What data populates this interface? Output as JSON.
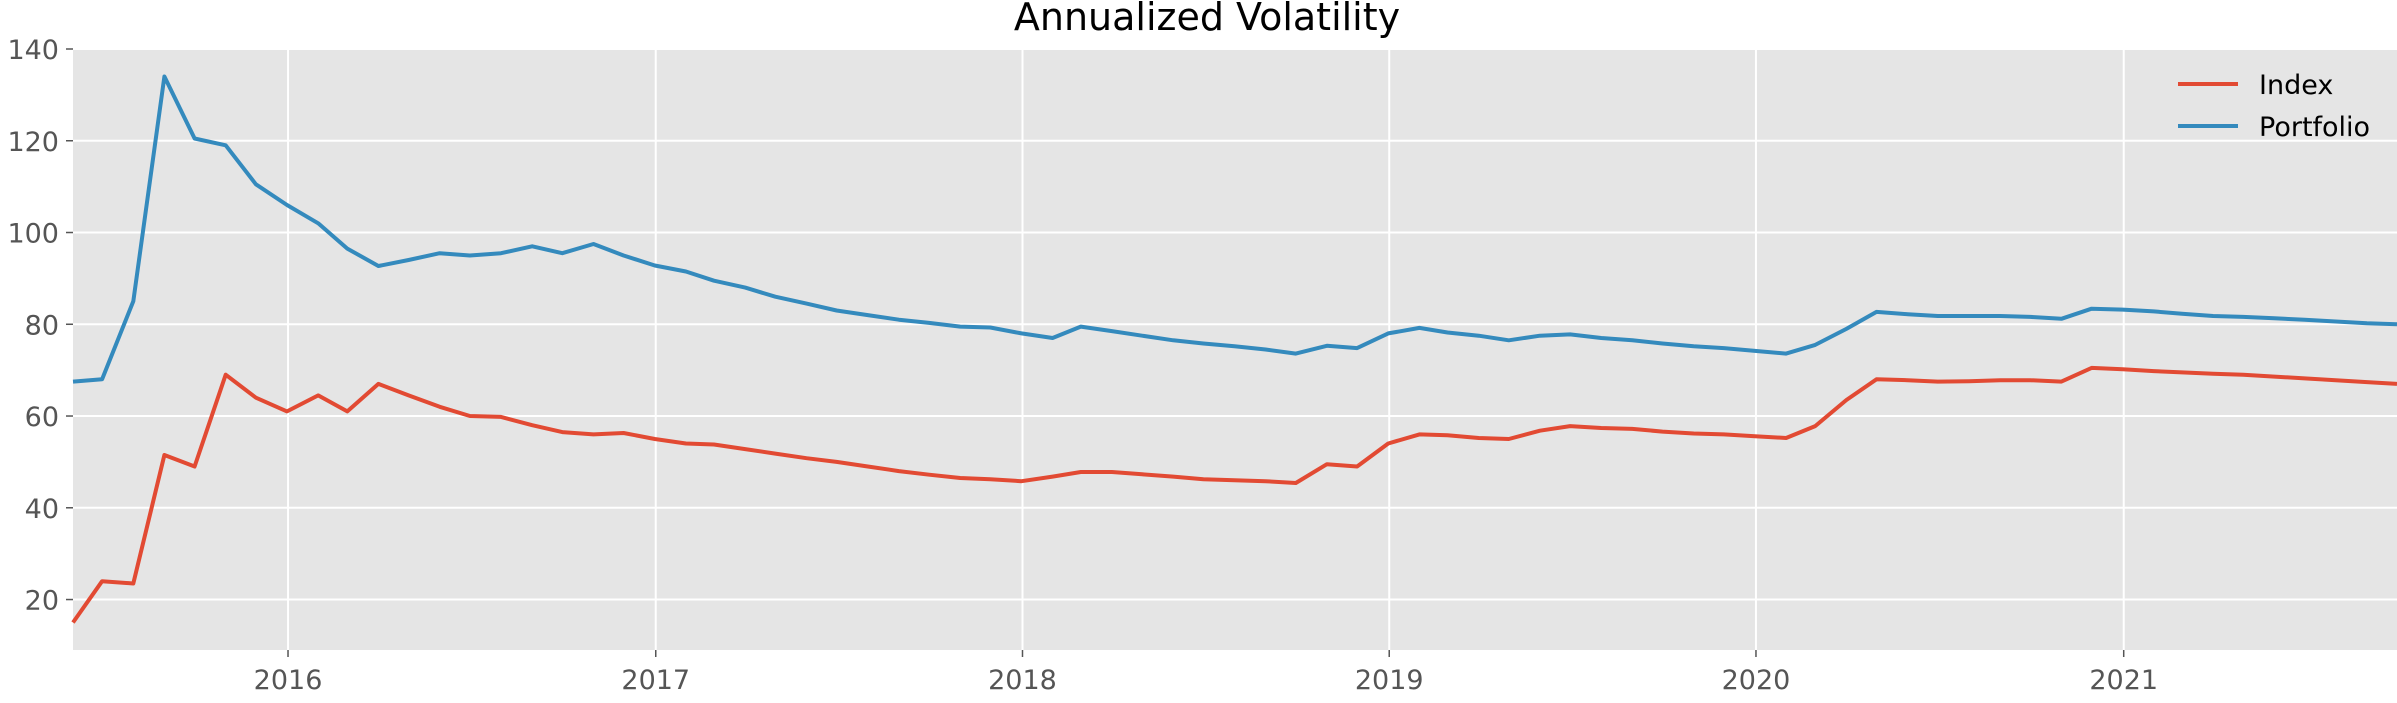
{
  "chart_data": {
    "type": "line",
    "title": "Annualized Volatility",
    "xlabel": "",
    "ylabel": "",
    "x_ticks": [
      "2016",
      "2017",
      "2018",
      "2019",
      "2020",
      "2021"
    ],
    "y_ticks": [
      20,
      40,
      60,
      80,
      100,
      120,
      140
    ],
    "x_range": [
      "2015-06-01",
      "2021-09-30"
    ],
    "ylim": [
      9,
      140
    ],
    "grid": true,
    "legend_position": "top-right",
    "x": [
      "2015-06-01",
      "2015-06-30",
      "2015-07-31",
      "2015-08-31",
      "2015-09-30",
      "2015-10-31",
      "2015-11-30",
      "2015-12-31",
      "2016-01-31",
      "2016-02-29",
      "2016-03-31",
      "2016-04-30",
      "2016-05-31",
      "2016-06-30",
      "2016-07-31",
      "2016-08-31",
      "2016-09-30",
      "2016-10-31",
      "2016-11-30",
      "2016-12-31",
      "2017-01-31",
      "2017-02-28",
      "2017-03-31",
      "2017-04-30",
      "2017-05-31",
      "2017-06-30",
      "2017-07-31",
      "2017-08-31",
      "2017-09-30",
      "2017-10-31",
      "2017-11-30",
      "2017-12-31",
      "2018-01-31",
      "2018-02-28",
      "2018-03-31",
      "2018-04-30",
      "2018-05-31",
      "2018-06-30",
      "2018-07-31",
      "2018-08-31",
      "2018-09-30",
      "2018-10-31",
      "2018-11-30",
      "2018-12-31",
      "2019-01-31",
      "2019-02-28",
      "2019-03-31",
      "2019-04-30",
      "2019-05-31",
      "2019-06-30",
      "2019-07-31",
      "2019-08-31",
      "2019-09-30",
      "2019-10-31",
      "2019-11-30",
      "2019-12-31",
      "2020-01-31",
      "2020-02-29",
      "2020-03-31",
      "2020-04-30",
      "2020-05-31",
      "2020-06-30",
      "2020-07-31",
      "2020-08-31",
      "2020-09-30",
      "2020-10-31",
      "2020-11-30",
      "2020-12-31",
      "2021-01-31",
      "2021-02-28",
      "2021-03-31",
      "2021-04-30",
      "2021-05-31",
      "2021-06-30",
      "2021-07-31",
      "2021-08-31",
      "2021-09-30"
    ],
    "series": [
      {
        "name": "Index",
        "color": "#e24a33",
        "values": [
          15.0,
          24.0,
          23.5,
          51.5,
          49.0,
          69.0,
          64.0,
          61.0,
          64.5,
          61.0,
          67.0,
          64.5,
          62.0,
          60.0,
          59.8,
          58.0,
          56.5,
          56.0,
          56.3,
          55.0,
          54.0,
          53.8,
          52.8,
          51.8,
          50.8,
          50.0,
          49.0,
          48.0,
          47.2,
          46.5,
          46.2,
          45.8,
          46.8,
          47.8,
          47.8,
          47.3,
          46.8,
          46.2,
          46.0,
          45.8,
          45.4,
          49.5,
          49.0,
          54.0,
          56.0,
          55.8,
          55.2,
          55.0,
          56.8,
          57.8,
          57.4,
          57.2,
          56.6,
          56.2,
          56.0,
          55.6,
          55.2,
          57.8,
          63.5,
          68.0,
          67.8,
          67.5,
          67.6,
          67.8,
          67.8,
          67.5,
          70.5,
          70.2,
          69.8,
          69.5,
          69.2,
          69.0,
          68.6,
          68.2,
          67.8,
          67.4,
          67.0
        ]
      },
      {
        "name": "Portfolio",
        "color": "#348abd",
        "values": [
          67.5,
          68.0,
          85.0,
          134.0,
          120.5,
          119.0,
          110.5,
          106.0,
          102.0,
          96.5,
          92.7,
          94.0,
          95.5,
          95.0,
          95.5,
          97.0,
          95.5,
          97.5,
          95.0,
          92.8,
          91.5,
          89.5,
          88.0,
          86.0,
          84.5,
          83.0,
          82.0,
          81.0,
          80.3,
          79.5,
          79.3,
          78.0,
          77.0,
          79.5,
          78.5,
          77.5,
          76.5,
          75.8,
          75.2,
          74.5,
          73.6,
          75.3,
          74.8,
          78.0,
          79.2,
          78.2,
          77.5,
          76.5,
          77.5,
          77.8,
          77.0,
          76.5,
          75.8,
          75.2,
          74.8,
          74.2,
          73.6,
          75.5,
          79.0,
          82.7,
          82.2,
          81.8,
          81.8,
          81.8,
          81.6,
          81.2,
          83.4,
          83.2,
          82.8,
          82.3,
          81.8,
          81.6,
          81.3,
          81.0,
          80.6,
          80.2,
          80.0
        ]
      }
    ]
  }
}
